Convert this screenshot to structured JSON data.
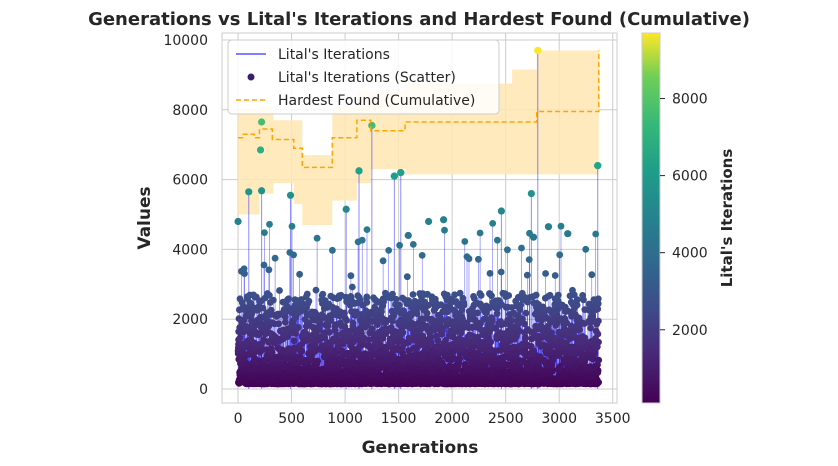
{
  "chart_data": {
    "type": "line",
    "title": "Generations vs Lital's Iterations and Hardest Found (Cumulative)",
    "xlabel": "Generations",
    "ylabel": "Values",
    "xlim": [
      -150,
      3540
    ],
    "ylim": [
      -400,
      10200
    ],
    "xticks": [
      0,
      500,
      1000,
      1500,
      2000,
      2500,
      3000,
      3500
    ],
    "yticks": [
      0,
      2000,
      4000,
      6000,
      8000,
      10000
    ],
    "grid": true,
    "legend": {
      "position": "top-left",
      "entries": [
        "Lital's Iterations",
        "Lital's Iterations (Scatter)",
        "Hardest Found (Cumulative)"
      ]
    },
    "colorbar": {
      "label": "Lital's Iterations",
      "colormap": "viridis",
      "range": [
        100,
        9700
      ],
      "ticks": [
        2000,
        4000,
        6000,
        8000
      ]
    },
    "series": [
      {
        "name": "Lital's Iterations",
        "style": "line",
        "color": "#0000ff",
        "notable_points": [
          {
            "x": 100,
            "y": 5650
          },
          {
            "x": 220,
            "y": 5680
          },
          {
            "x": 490,
            "y": 5550
          },
          {
            "x": 1010,
            "y": 5150
          },
          {
            "x": 1130,
            "y": 6250
          },
          {
            "x": 1250,
            "y": 7550
          },
          {
            "x": 1460,
            "y": 6100
          },
          {
            "x": 1520,
            "y": 6200
          },
          {
            "x": 2460,
            "y": 5100
          },
          {
            "x": 2740,
            "y": 5600
          },
          {
            "x": 2800,
            "y": 9700
          },
          {
            "x": 3360,
            "y": 6400
          }
        ]
      },
      {
        "name": "Lital's Iterations (Scatter)",
        "style": "scatter",
        "color_by_value": true,
        "notable_points": [
          {
            "x": 0,
            "y": 4800
          },
          {
            "x": 210,
            "y": 6850
          },
          {
            "x": 220,
            "y": 7650
          },
          {
            "x": 1250,
            "y": 7550
          },
          {
            "x": 1130,
            "y": 6250
          },
          {
            "x": 1460,
            "y": 6100
          },
          {
            "x": 1520,
            "y": 6200
          },
          {
            "x": 2800,
            "y": 9700
          },
          {
            "x": 3360,
            "y": 6400
          },
          {
            "x": 2760,
            "y": 4350
          },
          {
            "x": 2900,
            "y": 4650
          },
          {
            "x": 3080,
            "y": 4450
          },
          {
            "x": 1920,
            "y": 4850
          },
          {
            "x": 1780,
            "y": 4800
          },
          {
            "x": 1590,
            "y": 4400
          }
        ]
      },
      {
        "name": "Hardest Found (Cumulative)",
        "style": "dashed-step",
        "color": "#ffa500",
        "steps": [
          {
            "x": 0,
            "y": 7200
          },
          {
            "x": 50,
            "y": 7300
          },
          {
            "x": 150,
            "y": 7200
          },
          {
            "x": 200,
            "y": 7450
          },
          {
            "x": 320,
            "y": 7150
          },
          {
            "x": 520,
            "y": 6900
          },
          {
            "x": 600,
            "y": 6350
          },
          {
            "x": 880,
            "y": 7200
          },
          {
            "x": 1110,
            "y": 7700
          },
          {
            "x": 1240,
            "y": 7400
          },
          {
            "x": 1560,
            "y": 7650
          },
          {
            "x": 2790,
            "y": 7950
          },
          {
            "x": 3370,
            "y": 9700
          }
        ],
        "band": [
          {
            "x": 0,
            "lo": 5000,
            "hi": 8000
          },
          {
            "x": 200,
            "lo": 5600,
            "hi": 8100
          },
          {
            "x": 330,
            "lo": 5900,
            "hi": 7700
          },
          {
            "x": 520,
            "lo": 5300,
            "hi": 7700
          },
          {
            "x": 600,
            "lo": 4700,
            "hi": 6700
          },
          {
            "x": 880,
            "lo": 5400,
            "hi": 8100
          },
          {
            "x": 1110,
            "lo": 5900,
            "hi": 8550
          },
          {
            "x": 1240,
            "lo": 6300,
            "hi": 8550
          },
          {
            "x": 1560,
            "lo": 6150,
            "hi": 8750
          },
          {
            "x": 2560,
            "lo": 6150,
            "hi": 9150
          },
          {
            "x": 2790,
            "lo": 6150,
            "hi": 9700
          },
          {
            "x": 3370,
            "lo": 6150,
            "hi": 9700
          }
        ],
        "band_color": "#ffe6b3"
      }
    ]
  }
}
